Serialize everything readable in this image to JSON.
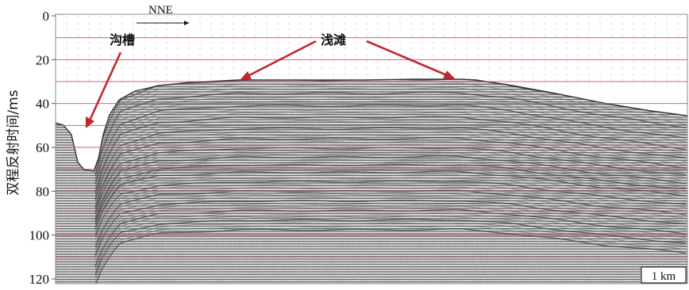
{
  "figure": {
    "y_axis": {
      "label": "双程反射时间/ms",
      "ticks": [
        "0",
        "20",
        "40",
        "60",
        "80",
        "100",
        "120"
      ],
      "range": [
        0,
        120
      ]
    },
    "direction_label": "NNE",
    "annotations": {
      "trough": "沟槽",
      "shoal": "浅滩"
    },
    "scale_bar": "1 km",
    "colors": {
      "gridline": "#d9485a",
      "arrow": "#c0282f",
      "seismic_dark": "#4a4a4a",
      "seismic_light": "#d8d8d8",
      "text": "#111111"
    }
  }
}
